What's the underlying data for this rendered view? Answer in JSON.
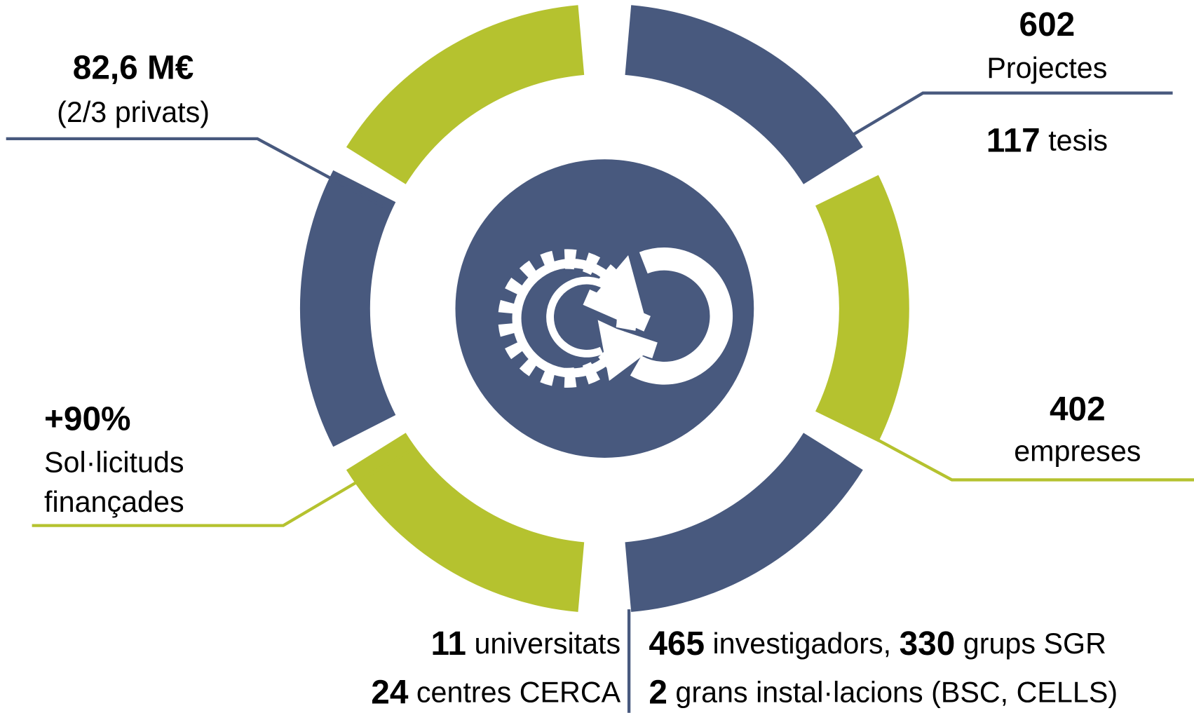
{
  "stats": {
    "funding": {
      "value": "82,6 M€",
      "label": "(2/3 privats)"
    },
    "projects": {
      "value": "602",
      "label": "Projectes"
    },
    "theses": {
      "value": "117",
      "label": "tesis"
    },
    "companies": {
      "value": "402",
      "label": "empreses"
    },
    "applications": {
      "value": "+90%",
      "lines": [
        "Sol·licituds",
        "finançades"
      ]
    },
    "universities": {
      "value": "11",
      "label": "universitats"
    },
    "centres": {
      "value": "24",
      "label": "centres CERCA"
    },
    "researchers": {
      "value": "465",
      "label": "investigadors,"
    },
    "groups": {
      "value": "330",
      "label": "grups SGR"
    },
    "facilities": {
      "value": "2",
      "label": "grans instal·lacions (BSC, CELLS)"
    }
  }
}
